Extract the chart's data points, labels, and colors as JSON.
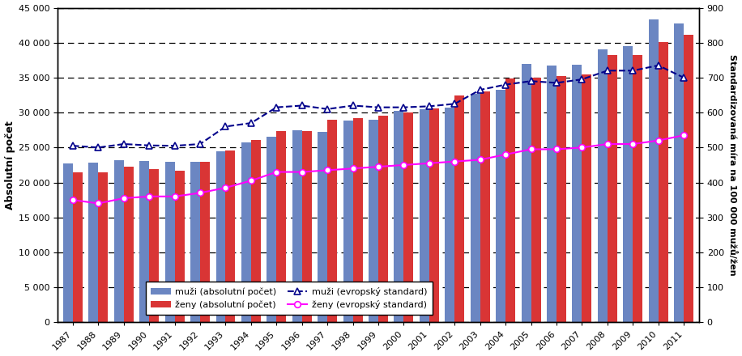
{
  "years": [
    1987,
    1988,
    1989,
    1990,
    1991,
    1992,
    1993,
    1994,
    1995,
    1996,
    1997,
    1998,
    1999,
    2000,
    2001,
    2002,
    2003,
    2004,
    2005,
    2006,
    2007,
    2008,
    2009,
    2010,
    2011
  ],
  "muzi_abs": [
    22700,
    22800,
    23200,
    23100,
    23000,
    22900,
    24500,
    25700,
    26600,
    27500,
    27200,
    28900,
    29000,
    30200,
    30500,
    30700,
    32700,
    33300,
    37000,
    36700,
    36800,
    39000,
    39500,
    43300,
    42700
  ],
  "zeny_abs": [
    21500,
    21400,
    22300,
    21900,
    21700,
    22900,
    24600,
    26100,
    27400,
    27300,
    29000,
    29200,
    29500,
    30000,
    30600,
    32500,
    33000,
    34900,
    35000,
    35200,
    35500,
    38200,
    38200,
    40100,
    41100
  ],
  "muzi_std": [
    505,
    500,
    510,
    506,
    505,
    510,
    560,
    570,
    615,
    620,
    610,
    620,
    615,
    615,
    618,
    625,
    665,
    680,
    690,
    685,
    695,
    720,
    720,
    735,
    700
  ],
  "zeny_std": [
    350,
    340,
    355,
    360,
    360,
    370,
    385,
    405,
    430,
    430,
    435,
    440,
    445,
    450,
    455,
    460,
    465,
    480,
    495,
    495,
    500,
    510,
    510,
    520,
    535
  ],
  "bar_color_muzi": "#6B86C2",
  "bar_color_zeny": "#D93535",
  "line_color_muzi": "#00008B",
  "line_color_zeny": "#FF00FF",
  "ylabel_left": "Absolutní počet",
  "ylabel_right": "Standardizovaná míra na 100 000 mužů/žen",
  "ylim_left": [
    0,
    45000
  ],
  "ylim_right": [
    0,
    900
  ],
  "yticks_left": [
    0,
    5000,
    10000,
    15000,
    20000,
    25000,
    30000,
    35000,
    40000,
    45000
  ],
  "yticks_right": [
    0,
    100,
    200,
    300,
    400,
    500,
    600,
    700,
    800,
    900
  ],
  "legend_labels": [
    "muži (absolutní počet)",
    "ženy (absolutní počet)",
    "muži (evropský standard)",
    "ženy (evropský standard)"
  ],
  "background_color": "#FFFFFF",
  "bar_width": 0.38,
  "figsize": [
    9.16,
    4.4
  ],
  "dpi": 100
}
